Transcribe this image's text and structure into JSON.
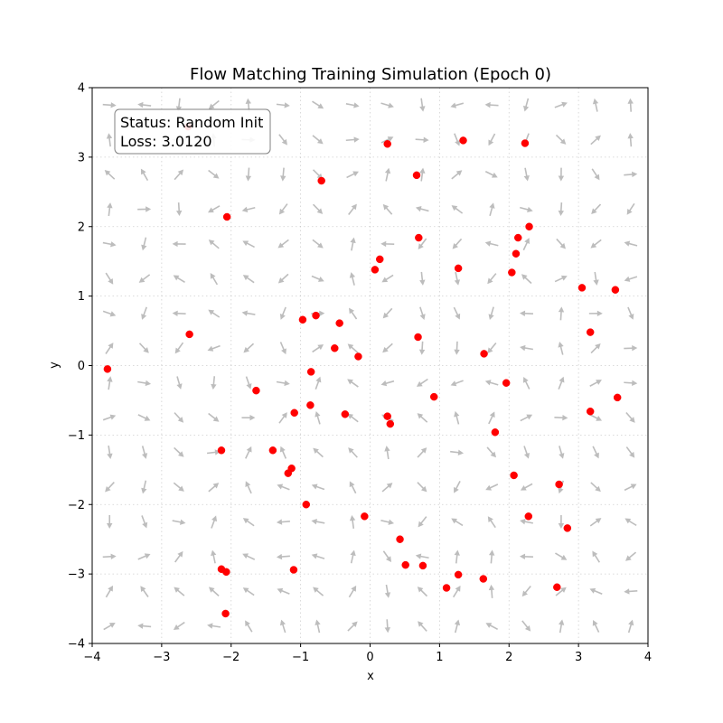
{
  "chart_data": {
    "type": "scatter",
    "title": "Flow Matching Training Simulation (Epoch 0)",
    "xlabel": "x",
    "ylabel": "y",
    "xlim": [
      -4,
      4
    ],
    "ylim": [
      -4,
      4
    ],
    "xticks": [
      -4,
      -3,
      -2,
      -1,
      0,
      1,
      2,
      3,
      4
    ],
    "yticks": [
      -4,
      -3,
      -2,
      -1,
      0,
      1,
      2,
      3,
      4
    ],
    "grid": true,
    "status_box": {
      "status": "Status: Random Init",
      "loss": "Loss: 3.0120"
    },
    "point_color": "#ff0000",
    "arrow_color": "#bdbdbd",
    "points": [
      [
        -2.62,
        3.44
      ],
      [
        0.25,
        3.19
      ],
      [
        1.34,
        3.24
      ],
      [
        2.23,
        3.2
      ],
      [
        -0.7,
        2.66
      ],
      [
        0.67,
        2.74
      ],
      [
        -2.06,
        2.14
      ],
      [
        0.7,
        1.84
      ],
      [
        2.13,
        1.84
      ],
      [
        2.29,
        2.0
      ],
      [
        2.1,
        1.61
      ],
      [
        0.14,
        1.53
      ],
      [
        0.07,
        1.38
      ],
      [
        1.27,
        1.4
      ],
      [
        2.04,
        1.34
      ],
      [
        3.05,
        1.12
      ],
      [
        3.53,
        1.09
      ],
      [
        -0.78,
        0.72
      ],
      [
        -0.97,
        0.66
      ],
      [
        -0.44,
        0.61
      ],
      [
        -2.6,
        0.45
      ],
      [
        0.69,
        0.41
      ],
      [
        3.17,
        0.48
      ],
      [
        -0.51,
        0.25
      ],
      [
        -0.17,
        0.13
      ],
      [
        1.64,
        0.17
      ],
      [
        -3.78,
        -0.05
      ],
      [
        -0.85,
        -0.09
      ],
      [
        1.96,
        -0.25
      ],
      [
        -1.64,
        -0.36
      ],
      [
        0.92,
        -0.45
      ],
      [
        3.56,
        -0.46
      ],
      [
        -0.86,
        -0.57
      ],
      [
        -1.09,
        -0.68
      ],
      [
        -0.36,
        -0.7
      ],
      [
        0.25,
        -0.73
      ],
      [
        0.29,
        -0.84
      ],
      [
        3.17,
        -0.66
      ],
      [
        1.8,
        -0.96
      ],
      [
        -2.14,
        -1.22
      ],
      [
        -1.4,
        -1.22
      ],
      [
        -1.13,
        -1.48
      ],
      [
        -1.18,
        -1.55
      ],
      [
        2.07,
        -1.58
      ],
      [
        2.72,
        -1.71
      ],
      [
        -0.92,
        -2.0
      ],
      [
        -0.08,
        -2.17
      ],
      [
        2.28,
        -2.17
      ],
      [
        2.84,
        -2.34
      ],
      [
        0.43,
        -2.5
      ],
      [
        -2.14,
        -2.93
      ],
      [
        -2.07,
        -2.97
      ],
      [
        -1.1,
        -2.94
      ],
      [
        0.51,
        -2.87
      ],
      [
        0.76,
        -2.88
      ],
      [
        1.27,
        -3.01
      ],
      [
        1.63,
        -3.07
      ],
      [
        1.1,
        -3.2
      ],
      [
        2.69,
        -3.19
      ],
      [
        -2.08,
        -3.57
      ]
    ]
  }
}
